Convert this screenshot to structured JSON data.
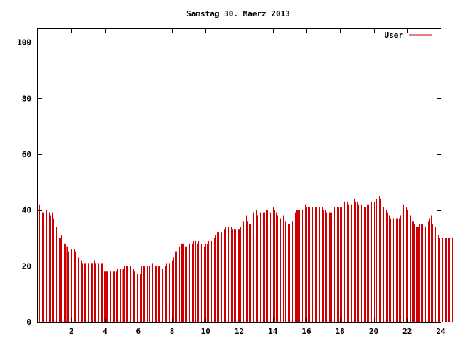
{
  "chart_data": {
    "type": "bar",
    "title": "Samstag 30. Maerz 2013",
    "xlabel": "",
    "ylabel": "",
    "xlim": [
      0,
      24
    ],
    "ylim": [
      0,
      105
    ],
    "x_ticks": [
      "2",
      "4",
      "6",
      "8",
      "10",
      "12",
      "14",
      "16",
      "18",
      "20",
      "22",
      "24"
    ],
    "y_ticks": [
      "0",
      "20",
      "40",
      "60",
      "80",
      "100"
    ],
    "grid": false,
    "legend_position": "top-right",
    "series": [
      {
        "name": "User",
        "color": "#cc0000",
        "interval_minutes": 5,
        "values": [
          42,
          42,
          39,
          39,
          39,
          40,
          40,
          39,
          39,
          38,
          39,
          37,
          36,
          34,
          32,
          30,
          30,
          31,
          28,
          28,
          28,
          27,
          25,
          26,
          26,
          25,
          26,
          25,
          24,
          23,
          22,
          22,
          21,
          21,
          21,
          21,
          21,
          21,
          21,
          21,
          22,
          21,
          21,
          21,
          21,
          21,
          21,
          18,
          18,
          18,
          18,
          18,
          18,
          18,
          18,
          18,
          18,
          19,
          19,
          19,
          19,
          19,
          20,
          20,
          20,
          20,
          20,
          19,
          19,
          18,
          18,
          17,
          17,
          17,
          20,
          20,
          20,
          20,
          20,
          20,
          20,
          20,
          21,
          20,
          20,
          20,
          20,
          20,
          19,
          19,
          19,
          20,
          21,
          21,
          21,
          22,
          22,
          23,
          25,
          25,
          26,
          27,
          27,
          28,
          28,
          27,
          27,
          27,
          28,
          28,
          28,
          29,
          29,
          28,
          28,
          29,
          28,
          28,
          28,
          27,
          28,
          28,
          29,
          30,
          29,
          29,
          30,
          31,
          32,
          32,
          32,
          32,
          32,
          33,
          34,
          34,
          34,
          34,
          34,
          33,
          33,
          33,
          33,
          33,
          33,
          34,
          35,
          36,
          37,
          38,
          36,
          35,
          35,
          37,
          39,
          39,
          40,
          38,
          38,
          39,
          39,
          39,
          39,
          40,
          40,
          39,
          39,
          40,
          41,
          40,
          39,
          38,
          37,
          37,
          37,
          38,
          38,
          36,
          36,
          35,
          35,
          35,
          36,
          38,
          39,
          40,
          40,
          40,
          40,
          40,
          41,
          42,
          41,
          41,
          41,
          41,
          41,
          41,
          41,
          41,
          41,
          41,
          41,
          41,
          40,
          40,
          39,
          39,
          39,
          39,
          39,
          40,
          41,
          41,
          41,
          41,
          41,
          41,
          42,
          43,
          43,
          43,
          42,
          42,
          42,
          43,
          44,
          43,
          43,
          42,
          42,
          42,
          41,
          41,
          41,
          42,
          42,
          43,
          43,
          43,
          43,
          44,
          44,
          45,
          45,
          44,
          42,
          41,
          40,
          40,
          39,
          38,
          37,
          36,
          37,
          37,
          37,
          37,
          37,
          38,
          41,
          42,
          41,
          41,
          40,
          39,
          38,
          37,
          36,
          35,
          34,
          34,
          34,
          35,
          35,
          35,
          34,
          34,
          34,
          36,
          37,
          38,
          35,
          35,
          34,
          33,
          31,
          30,
          30,
          30,
          30,
          30,
          30,
          30,
          30,
          30,
          30,
          30,
          30,
          30,
          29,
          29
        ]
      }
    ],
    "highlight_hours": [
      1.75,
      5.1,
      8.55,
      12.0,
      15.45,
      18.9,
      22.35
    ]
  }
}
